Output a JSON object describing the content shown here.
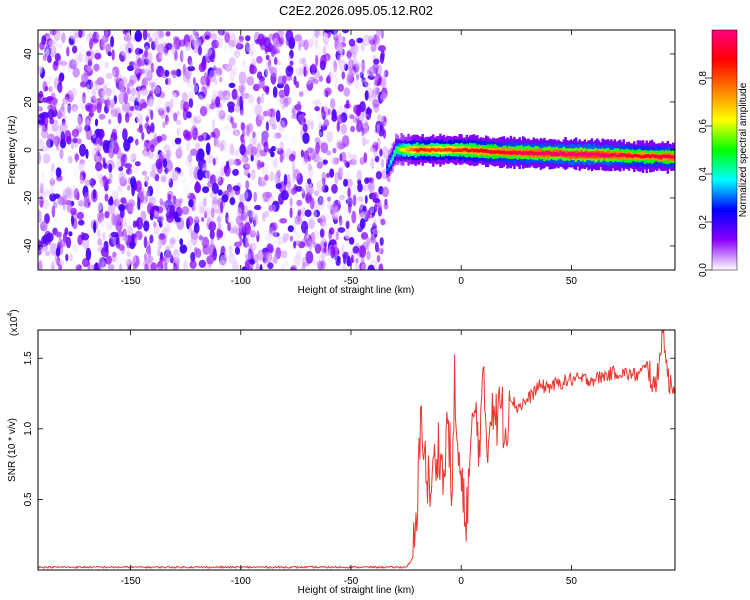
{
  "title": "C2E2.2026.095.05.12.R02",
  "chart_data": [
    {
      "type": "heatmap",
      "xlabel": "Height of straight line (km)",
      "ylabel": "Frequency (Hz)",
      "xlim": [
        -192,
        97
      ],
      "ylim": [
        -50,
        50
      ],
      "xticks": [
        -150,
        -100,
        -50,
        0,
        50
      ],
      "yticks": [
        -40,
        -20,
        0,
        20,
        40
      ],
      "noise_region_x": [
        -192,
        -34
      ],
      "noise_amplitude_range": [
        0.0,
        0.2
      ],
      "ridge": {
        "x_start": -34,
        "x_end": 97,
        "frequency_points": [
          [
            -34,
            -8
          ],
          [
            -30,
            0
          ],
          [
            -20,
            0
          ],
          [
            -10,
            0
          ],
          [
            0,
            0
          ],
          [
            20,
            -1
          ],
          [
            60,
            -2
          ],
          [
            97,
            -3
          ]
        ],
        "amplitude_points": [
          [
            -34,
            0.3
          ],
          [
            -28,
            0.6
          ],
          [
            -20,
            0.85
          ],
          [
            -10,
            0.8
          ],
          [
            0,
            0.85
          ],
          [
            25,
            0.95
          ],
          [
            60,
            1.0
          ],
          [
            80,
            0.9
          ],
          [
            97,
            0.95
          ]
        ]
      },
      "colorbar": {
        "label": "Normalized spectral amplitude",
        "ticks": [
          "0.0",
          "0.2",
          "0.4",
          "0.6",
          "0.8"
        ],
        "range": [
          0,
          1
        ],
        "colors": [
          "#ffffff",
          "#8a00ff",
          "#0000ff",
          "#00ffff",
          "#00ff00",
          "#ffff00",
          "#ff7f00",
          "#ff0000",
          "#ff0080"
        ]
      },
      "grid": false
    },
    {
      "type": "line",
      "xlabel": "Height of straight line (km)",
      "ylabel": "SNR (10 * v/v)",
      "y_multiplier_label": "(x10",
      "y_multiplier_exp": "4",
      "y_multiplier_close": ")",
      "xlim": [
        -192,
        97
      ],
      "ylim": [
        0,
        1.7
      ],
      "xticks": [
        -150,
        -100,
        -50,
        0,
        50
      ],
      "yticks": [
        "0.5",
        "1.0",
        "1.5"
      ],
      "color": "#e8382f",
      "series": [
        {
          "points": [
            [
              -192,
              0.02
            ],
            [
              -100,
              0.02
            ],
            [
              -25,
              0.02
            ],
            [
              -22,
              0.08
            ],
            [
              -20,
              0.35
            ],
            [
              -19,
              0.8
            ],
            [
              -18,
              1.14
            ],
            [
              -16,
              0.7
            ],
            [
              -14,
              0.55
            ],
            [
              -12,
              0.75
            ],
            [
              -10,
              0.9
            ],
            [
              -8,
              0.6
            ],
            [
              -6,
              1.1
            ],
            [
              -4,
              0.5
            ],
            [
              -3,
              1.35
            ],
            [
              -2,
              0.9
            ],
            [
              0,
              0.6
            ],
            [
              2,
              0.35
            ],
            [
              4,
              0.75
            ],
            [
              6,
              1.15
            ],
            [
              8,
              0.9
            ],
            [
              10,
              1.3
            ],
            [
              12,
              0.85
            ],
            [
              14,
              1.25
            ],
            [
              16,
              1.05
            ],
            [
              18,
              1.2
            ],
            [
              20,
              0.95
            ],
            [
              22,
              1.25
            ],
            [
              25,
              1.15
            ],
            [
              30,
              1.2
            ],
            [
              35,
              1.3
            ],
            [
              40,
              1.3
            ],
            [
              50,
              1.35
            ],
            [
              60,
              1.35
            ],
            [
              70,
              1.4
            ],
            [
              80,
              1.38
            ],
            [
              85,
              1.45
            ],
            [
              88,
              1.25
            ],
            [
              90,
              1.55
            ],
            [
              92,
              1.7
            ],
            [
              94,
              1.3
            ],
            [
              97,
              1.35
            ]
          ]
        }
      ],
      "grid": false
    }
  ]
}
